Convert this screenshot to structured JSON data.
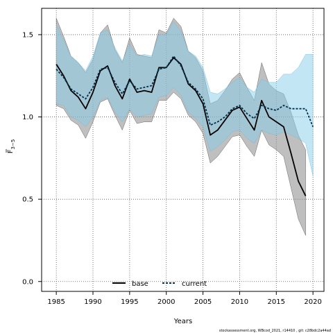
{
  "chart_data": {
    "type": "line",
    "xlabel": "Years",
    "ylabel": "F̅ 3–5",
    "ylabel_main": "F",
    "ylabel_sub": "3−5",
    "xlim": [
      1983,
      2021.5
    ],
    "ylim": [
      -0.06,
      1.66
    ],
    "xticks": [
      1985,
      1990,
      1995,
      2000,
      2005,
      2010,
      2015,
      2020
    ],
    "yticks": [
      0.0,
      0.5,
      1.0,
      1.5
    ],
    "ytick_labels": [
      "0.0",
      "0.5",
      "1.0",
      "1.5"
    ],
    "grid": true,
    "legend_position": "bottom-center",
    "x": [
      1985,
      1986,
      1987,
      1988,
      1989,
      1990,
      1991,
      1992,
      1993,
      1994,
      1995,
      1996,
      1997,
      1998,
      1999,
      2000,
      2001,
      2002,
      2003,
      2004,
      2005,
      2006,
      2007,
      2008,
      2009,
      2010,
      2011,
      2012,
      2013,
      2014,
      2015,
      2016,
      2017,
      2018,
      2019,
      2020
    ],
    "series": [
      {
        "name": "base",
        "color": "#000000",
        "band_color": "#8a8a8a",
        "x": [
          1985,
          1986,
          1987,
          1988,
          1989,
          1990,
          1991,
          1992,
          1993,
          1994,
          1995,
          1996,
          1997,
          1998,
          1999,
          2000,
          2001,
          2002,
          2003,
          2004,
          2005,
          2006,
          2007,
          2008,
          2009,
          2010,
          2011,
          2012,
          2013,
          2014,
          2015,
          2016,
          2017,
          2018,
          2019
        ],
        "values": [
          1.32,
          1.25,
          1.16,
          1.12,
          1.05,
          1.15,
          1.28,
          1.31,
          1.19,
          1.11,
          1.23,
          1.15,
          1.16,
          1.15,
          1.3,
          1.3,
          1.36,
          1.32,
          1.2,
          1.16,
          1.08,
          0.89,
          0.92,
          0.98,
          1.04,
          1.06,
          0.99,
          0.92,
          1.1,
          1.0,
          0.97,
          0.94,
          0.78,
          0.61,
          0.52
        ],
        "lower": [
          1.07,
          1.05,
          0.98,
          0.95,
          0.87,
          0.97,
          1.09,
          1.11,
          1.01,
          0.92,
          1.04,
          0.96,
          0.97,
          0.97,
          1.1,
          1.1,
          1.15,
          1.11,
          1.01,
          0.97,
          0.9,
          0.72,
          0.76,
          0.82,
          0.88,
          0.89,
          0.82,
          0.76,
          0.92,
          0.83,
          0.8,
          0.76,
          0.57,
          0.38,
          0.28
        ],
        "upper": [
          1.6,
          1.49,
          1.37,
          1.33,
          1.27,
          1.35,
          1.51,
          1.56,
          1.41,
          1.33,
          1.48,
          1.38,
          1.37,
          1.36,
          1.53,
          1.51,
          1.6,
          1.55,
          1.4,
          1.36,
          1.28,
          1.08,
          1.1,
          1.16,
          1.23,
          1.27,
          1.18,
          1.1,
          1.33,
          1.2,
          1.16,
          1.14,
          1.03,
          0.89,
          0.8
        ]
      },
      {
        "name": "current",
        "color": "#00314c",
        "band_color": "#87ceeb",
        "x": [
          1985,
          1986,
          1987,
          1988,
          1989,
          1990,
          1991,
          1992,
          1993,
          1994,
          1995,
          1996,
          1997,
          1998,
          1999,
          2000,
          2001,
          2002,
          2003,
          2004,
          2005,
          2006,
          2007,
          2008,
          2009,
          2010,
          2011,
          2012,
          2013,
          2014,
          2015,
          2016,
          2017,
          2018,
          2019,
          2020
        ],
        "values": [
          1.29,
          1.24,
          1.17,
          1.14,
          1.11,
          1.18,
          1.29,
          1.3,
          1.21,
          1.14,
          1.22,
          1.17,
          1.18,
          1.19,
          1.29,
          1.3,
          1.37,
          1.31,
          1.21,
          1.17,
          1.11,
          0.95,
          0.97,
          1.0,
          1.05,
          1.07,
          1.02,
          0.99,
          1.07,
          1.05,
          1.04,
          1.07,
          1.05,
          1.05,
          1.05,
          0.94
        ],
        "lower": [
          1.08,
          1.07,
          1.0,
          0.98,
          0.94,
          1.0,
          1.1,
          1.12,
          1.03,
          0.97,
          1.05,
          1.0,
          1.01,
          1.02,
          1.12,
          1.13,
          1.18,
          1.13,
          1.03,
          0.99,
          0.94,
          0.79,
          0.82,
          0.86,
          0.91,
          0.92,
          0.87,
          0.84,
          0.92,
          0.9,
          0.89,
          0.91,
          0.89,
          0.87,
          0.84,
          0.64
        ],
        "upper": [
          1.56,
          1.47,
          1.37,
          1.33,
          1.28,
          1.37,
          1.51,
          1.53,
          1.42,
          1.34,
          1.44,
          1.37,
          1.38,
          1.37,
          1.5,
          1.5,
          1.58,
          1.52,
          1.4,
          1.37,
          1.3,
          1.15,
          1.14,
          1.17,
          1.21,
          1.24,
          1.18,
          1.15,
          1.23,
          1.21,
          1.21,
          1.26,
          1.26,
          1.3,
          1.38,
          1.38
        ]
      }
    ]
  },
  "footer": {
    "credit": "stockassessment.org,  WBcod_2021,  r14410 ,  git:  c28bdc2a44ad"
  }
}
